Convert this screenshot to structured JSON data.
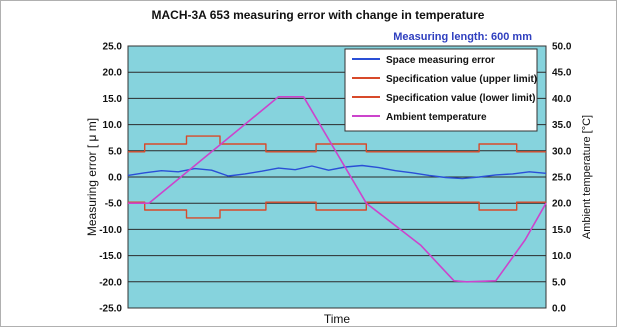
{
  "chart_data": {
    "type": "line",
    "title": "MACH-3A 653 measuring error with change in temperature",
    "subtitle": "Measuring length: 600 mm",
    "xlabel": "Time",
    "ylabel": "Measuring error [ μ m]",
    "ylabel_right": "Ambient temperature [°C]",
    "ylim": [
      -25,
      25
    ],
    "ylim_right": [
      0,
      50
    ],
    "yticks": [
      "25.0",
      "20.0",
      "15.0",
      "10.0",
      "5.0",
      "0.0",
      "-5.0",
      "-10.0",
      "-15.0",
      "-20.0",
      "-25.0"
    ],
    "yticks_right": [
      "50.0",
      "45.0",
      "40.0",
      "35.0",
      "30.0",
      "25.0",
      "20.0",
      "15.0",
      "10.0",
      "5.0",
      "0.0"
    ],
    "grid": true,
    "legend_position": "top-right",
    "x_range": [
      0,
      100
    ],
    "series": [
      {
        "name": "Space measuring error",
        "axis": "left",
        "color": "#2a4fd6",
        "x": [
          0,
          4,
          8,
          12,
          16,
          20,
          24,
          28,
          32,
          36,
          40,
          44,
          48,
          52,
          56,
          60,
          64,
          68,
          72,
          76,
          80,
          84,
          88,
          92,
          96,
          100
        ],
        "y": [
          0.3,
          0.8,
          1.2,
          1.0,
          1.6,
          1.3,
          0.2,
          0.6,
          1.1,
          1.7,
          1.4,
          2.1,
          1.3,
          1.9,
          2.2,
          1.8,
          1.2,
          0.8,
          0.3,
          -0.1,
          -0.3,
          0.0,
          0.4,
          0.6,
          1.0,
          0.7
        ]
      },
      {
        "name": "Specification value (upper limit)",
        "axis": "left",
        "color": "#d84a2a",
        "x": [
          0,
          4,
          4,
          14,
          14,
          22,
          22,
          33,
          33,
          45,
          45,
          57,
          57,
          66,
          66,
          75,
          75,
          84,
          84,
          93,
          93,
          100
        ],
        "y": [
          4.8,
          4.8,
          6.3,
          6.3,
          7.8,
          7.8,
          6.3,
          6.3,
          4.8,
          4.8,
          6.3,
          6.3,
          4.8,
          4.8,
          4.8,
          4.8,
          4.8,
          4.8,
          6.3,
          6.3,
          4.8,
          4.8
        ]
      },
      {
        "name": "Specification value (lower limit)",
        "axis": "left",
        "color": "#d84a2a",
        "x": [
          0,
          4,
          4,
          14,
          14,
          22,
          22,
          33,
          33,
          45,
          45,
          57,
          57,
          66,
          66,
          75,
          75,
          84,
          84,
          93,
          93,
          100
        ],
        "y": [
          -4.8,
          -4.8,
          -6.3,
          -6.3,
          -7.8,
          -7.8,
          -6.3,
          -6.3,
          -4.8,
          -4.8,
          -6.3,
          -6.3,
          -4.8,
          -4.8,
          -4.8,
          -4.8,
          -4.8,
          -4.8,
          -6.3,
          -6.3,
          -4.8,
          -4.8
        ]
      },
      {
        "name": "Ambient temperature",
        "axis": "right",
        "color": "#cc44cc",
        "x": [
          0,
          5,
          36,
          42,
          57,
          70,
          78,
          81,
          88,
          95,
          100
        ],
        "y": [
          20.0,
          20.0,
          40.3,
          40.3,
          20.0,
          12.0,
          5.2,
          5.0,
          5.2,
          13.0,
          20.0
        ]
      }
    ]
  }
}
